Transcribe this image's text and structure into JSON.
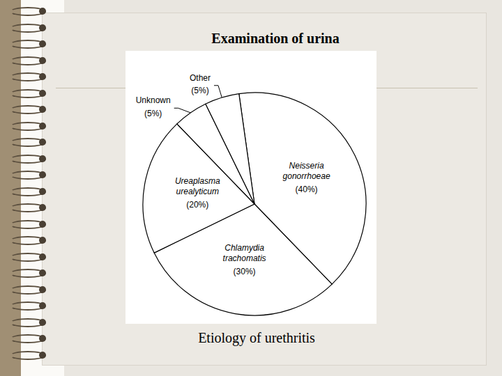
{
  "chart_data": {
    "type": "pie",
    "title": "Examination of urina",
    "caption": "Etiology of urethritis",
    "categories": [
      "Neisseria gonorrhoeae",
      "Chlamydia trachomatis",
      "Ureaplasma urealyticum",
      "Unknown",
      "Other"
    ],
    "values": [
      40,
      30,
      20,
      5,
      5
    ],
    "value_labels": [
      "(40%)",
      "(30%)",
      "(20%)",
      "(5%)",
      "(5%)"
    ],
    "color": "#ffffff",
    "data_labels": true
  }
}
